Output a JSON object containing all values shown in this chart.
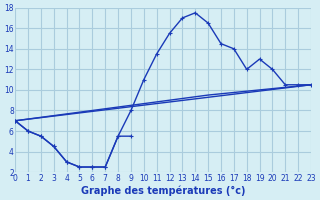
{
  "title": "Graphe des températures (°c)",
  "bg_color": "#d6eef4",
  "grid_color": "#aaccdd",
  "line_color": "#1a3ab8",
  "xlim": [
    0,
    23
  ],
  "ylim": [
    2,
    18
  ],
  "xticks": [
    0,
    1,
    2,
    3,
    4,
    5,
    6,
    7,
    8,
    9,
    10,
    11,
    12,
    13,
    14,
    15,
    16,
    17,
    18,
    19,
    20,
    21,
    22,
    23
  ],
  "yticks": [
    2,
    4,
    6,
    8,
    10,
    12,
    14,
    16,
    18
  ],
  "curve1_x": [
    0,
    1,
    2,
    3,
    4,
    5,
    6,
    7,
    8,
    9,
    10,
    11,
    12,
    13,
    14,
    15,
    16,
    17,
    18,
    19,
    20,
    21,
    22,
    23
  ],
  "curve1_y": [
    7.0,
    6.0,
    5.5,
    4.5,
    3.0,
    2.5,
    2.5,
    2.5,
    5.5,
    8.0,
    11.0,
    13.5,
    15.5,
    17.0,
    17.5,
    16.5,
    14.5,
    14.0,
    12.0,
    13.0,
    12.0,
    10.5,
    10.5,
    10.5
  ],
  "line2_x": [
    0,
    23
  ],
  "line2_y": [
    7.0,
    10.5
  ],
  "line3_x": [
    0,
    15,
    23
  ],
  "line3_y": [
    7.0,
    9.5,
    10.5
  ],
  "bot_x": [
    0,
    1,
    2,
    3,
    4,
    5,
    6,
    7,
    8,
    9
  ],
  "bot_y": [
    7.0,
    6.0,
    5.5,
    4.5,
    3.0,
    2.5,
    2.5,
    2.5,
    5.5,
    5.5
  ]
}
